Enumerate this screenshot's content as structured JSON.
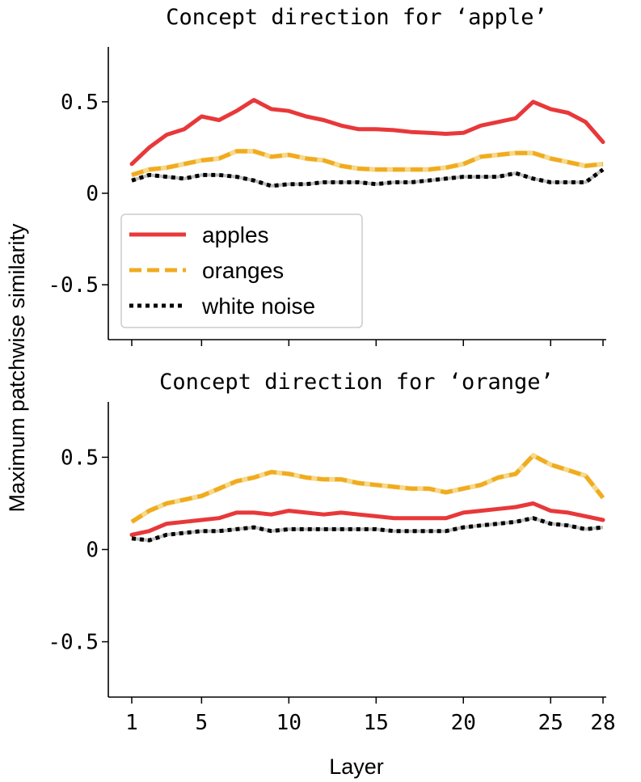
{
  "ylabel": "Maximum patchwise similarity",
  "xlabel": "Layer",
  "legend": {
    "placement": "lower-left",
    "entries": [
      {
        "label": "apples",
        "color": "#e8383a",
        "style": "solid"
      },
      {
        "label": "oranges",
        "color": "#f0ab1f",
        "style": "dashed"
      },
      {
        "label": "white noise",
        "color": "#000000",
        "style": "dotted"
      }
    ]
  },
  "chart_data": [
    {
      "type": "line",
      "title": "Concept direction for ‘apple’",
      "x": [
        1,
        2,
        3,
        4,
        5,
        6,
        7,
        8,
        9,
        10,
        11,
        12,
        13,
        14,
        15,
        16,
        17,
        18,
        19,
        20,
        21,
        22,
        23,
        24,
        25,
        26,
        27,
        28
      ],
      "xlim": [
        1,
        28
      ],
      "ylim": [
        -0.8,
        0.8
      ],
      "x_ticks": [
        1,
        5,
        10,
        15,
        20,
        25,
        28
      ],
      "x_tick_labels": [
        "1",
        "5",
        "10",
        "15",
        "20",
        "25",
        "28"
      ],
      "y_ticks": [
        0.5,
        0,
        -0.5
      ],
      "y_tick_labels": [
        "0.5",
        "0",
        "-0.5"
      ],
      "grid": false,
      "show_legend": true,
      "series": [
        {
          "name": "apples",
          "color": "#e8383a",
          "style": "solid",
          "values": [
            0.16,
            0.25,
            0.32,
            0.35,
            0.42,
            0.4,
            0.45,
            0.51,
            0.46,
            0.45,
            0.42,
            0.4,
            0.37,
            0.35,
            0.35,
            0.345,
            0.335,
            0.33,
            0.325,
            0.33,
            0.37,
            0.39,
            0.41,
            0.5,
            0.46,
            0.44,
            0.39,
            0.28
          ]
        },
        {
          "name": "oranges",
          "color": "#f0ab1f",
          "style": "dashed",
          "values": [
            0.1,
            0.13,
            0.14,
            0.16,
            0.18,
            0.19,
            0.23,
            0.23,
            0.2,
            0.21,
            0.19,
            0.18,
            0.15,
            0.135,
            0.13,
            0.13,
            0.13,
            0.13,
            0.14,
            0.16,
            0.2,
            0.21,
            0.22,
            0.22,
            0.19,
            0.17,
            0.15,
            0.16
          ]
        },
        {
          "name": "white noise",
          "color": "#000000",
          "style": "dotted",
          "values": [
            0.07,
            0.1,
            0.09,
            0.08,
            0.1,
            0.1,
            0.09,
            0.07,
            0.04,
            0.05,
            0.05,
            0.06,
            0.06,
            0.06,
            0.05,
            0.06,
            0.06,
            0.07,
            0.08,
            0.09,
            0.09,
            0.09,
            0.11,
            0.08,
            0.06,
            0.06,
            0.06,
            0.13
          ]
        }
      ]
    },
    {
      "type": "line",
      "title": "Concept direction for ‘orange’",
      "x": [
        1,
        2,
        3,
        4,
        5,
        6,
        7,
        8,
        9,
        10,
        11,
        12,
        13,
        14,
        15,
        16,
        17,
        18,
        19,
        20,
        21,
        22,
        23,
        24,
        25,
        26,
        27,
        28
      ],
      "xlim": [
        1,
        28
      ],
      "ylim": [
        -0.8,
        0.8
      ],
      "x_ticks": [
        1,
        5,
        10,
        15,
        20,
        25,
        28
      ],
      "x_tick_labels": [
        "1",
        "5",
        "10",
        "15",
        "20",
        "25",
        "28"
      ],
      "y_ticks": [
        0.5,
        0,
        -0.5
      ],
      "y_tick_labels": [
        "0.5",
        "0",
        "-0.5"
      ],
      "grid": false,
      "show_legend": false,
      "series": [
        {
          "name": "apples",
          "color": "#e8383a",
          "style": "solid",
          "values": [
            0.08,
            0.1,
            0.14,
            0.15,
            0.16,
            0.17,
            0.2,
            0.2,
            0.19,
            0.21,
            0.2,
            0.19,
            0.2,
            0.19,
            0.18,
            0.17,
            0.17,
            0.17,
            0.17,
            0.2,
            0.21,
            0.22,
            0.23,
            0.25,
            0.21,
            0.2,
            0.18,
            0.16
          ]
        },
        {
          "name": "oranges",
          "color": "#f0ab1f",
          "style": "dashed",
          "values": [
            0.15,
            0.21,
            0.25,
            0.27,
            0.29,
            0.33,
            0.37,
            0.39,
            0.42,
            0.41,
            0.39,
            0.38,
            0.38,
            0.36,
            0.35,
            0.34,
            0.33,
            0.33,
            0.31,
            0.33,
            0.35,
            0.39,
            0.41,
            0.51,
            0.46,
            0.43,
            0.4,
            0.28
          ]
        },
        {
          "name": "white noise",
          "color": "#000000",
          "style": "dotted",
          "values": [
            0.06,
            0.05,
            0.08,
            0.09,
            0.1,
            0.1,
            0.11,
            0.12,
            0.1,
            0.11,
            0.11,
            0.11,
            0.11,
            0.11,
            0.11,
            0.1,
            0.1,
            0.1,
            0.1,
            0.12,
            0.13,
            0.14,
            0.15,
            0.17,
            0.14,
            0.13,
            0.11,
            0.12
          ]
        }
      ]
    }
  ]
}
